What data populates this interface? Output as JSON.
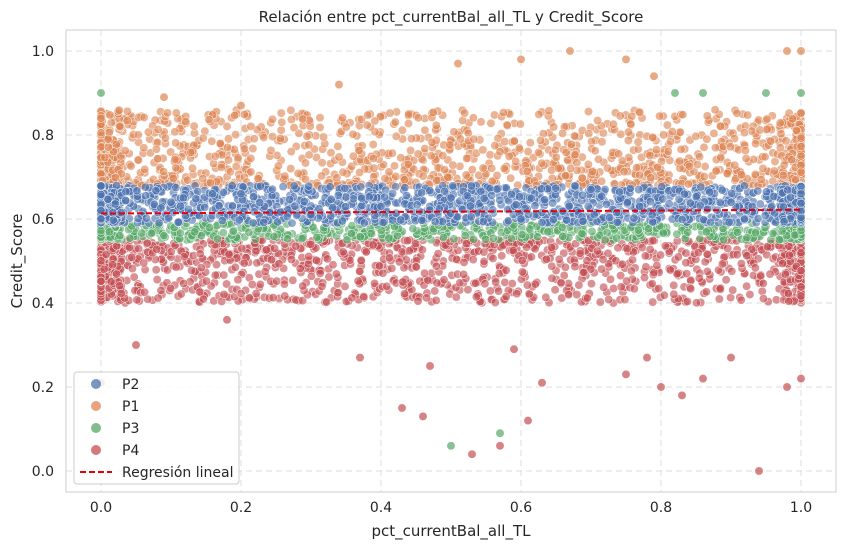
{
  "chart_data": {
    "type": "scatter",
    "title": "Relación entre pct_currentBal_all_TL y Credit_Score",
    "xlabel": "pct_currentBal_all_TL",
    "ylabel": "Credit_Score",
    "xlim": [
      -0.05,
      1.05
    ],
    "ylim": [
      -0.05,
      1.05
    ],
    "xticks": [
      "0.0",
      "0.2",
      "0.4",
      "0.6",
      "0.8",
      "1.0"
    ],
    "yticks": [
      "0.0",
      "0.2",
      "0.4",
      "0.6",
      "0.8",
      "1.0"
    ],
    "grid": true,
    "legend_position": "lower-left",
    "series": [
      {
        "name": "P2",
        "color": "#4c72b0",
        "band": [
          0.59,
          0.68
        ],
        "points": [
          [
            0.0,
            0.62
          ],
          [
            0.1,
            0.64
          ],
          [
            0.2,
            0.66
          ],
          [
            0.3,
            0.61
          ],
          [
            0.4,
            0.63
          ],
          [
            0.5,
            0.65
          ],
          [
            0.6,
            0.6
          ],
          [
            0.7,
            0.67
          ],
          [
            0.8,
            0.62
          ],
          [
            0.9,
            0.64
          ],
          [
            1.0,
            0.66
          ]
        ]
      },
      {
        "name": "P1",
        "color": "#dd8452",
        "band": [
          0.68,
          0.86
        ],
        "points": [
          [
            0.0,
            0.84
          ],
          [
            0.01,
            0.79
          ],
          [
            0.09,
            0.89
          ],
          [
            0.2,
            0.87
          ],
          [
            0.34,
            0.92
          ],
          [
            0.51,
            0.97
          ],
          [
            0.6,
            0.98
          ],
          [
            0.67,
            1.0
          ],
          [
            0.75,
            0.98
          ],
          [
            0.79,
            0.94
          ],
          [
            0.98,
            1.0
          ],
          [
            1.0,
            1.0
          ]
        ]
      },
      {
        "name": "P3",
        "color": "#55a868",
        "band": [
          0.55,
          0.59
        ],
        "points": [
          [
            0.0,
            0.9
          ],
          [
            0.5,
            0.06
          ],
          [
            0.57,
            0.09
          ],
          [
            0.82,
            0.9
          ],
          [
            0.86,
            0.9
          ],
          [
            0.95,
            0.9
          ],
          [
            1.0,
            0.9
          ]
        ]
      },
      {
        "name": "P4",
        "color": "#c44e52",
        "band": [
          0.4,
          0.55
        ],
        "points": [
          [
            0.0,
            0.21
          ],
          [
            0.05,
            0.3
          ],
          [
            0.18,
            0.36
          ],
          [
            0.37,
            0.27
          ],
          [
            0.43,
            0.15
          ],
          [
            0.46,
            0.13
          ],
          [
            0.47,
            0.25
          ],
          [
            0.53,
            0.04
          ],
          [
            0.57,
            0.06
          ],
          [
            0.59,
            0.29
          ],
          [
            0.61,
            0.12
          ],
          [
            0.63,
            0.21
          ],
          [
            0.75,
            0.23
          ],
          [
            0.78,
            0.27
          ],
          [
            0.8,
            0.2
          ],
          [
            0.83,
            0.18
          ],
          [
            0.86,
            0.22
          ],
          [
            0.9,
            0.27
          ],
          [
            0.94,
            0.0
          ],
          [
            0.98,
            0.2
          ],
          [
            1.0,
            0.22
          ]
        ]
      }
    ],
    "regression": {
      "name": "Regresión lineal",
      "color": "#e8000b",
      "x": [
        0.0,
        1.0
      ],
      "y": [
        0.613,
        0.622
      ]
    }
  }
}
